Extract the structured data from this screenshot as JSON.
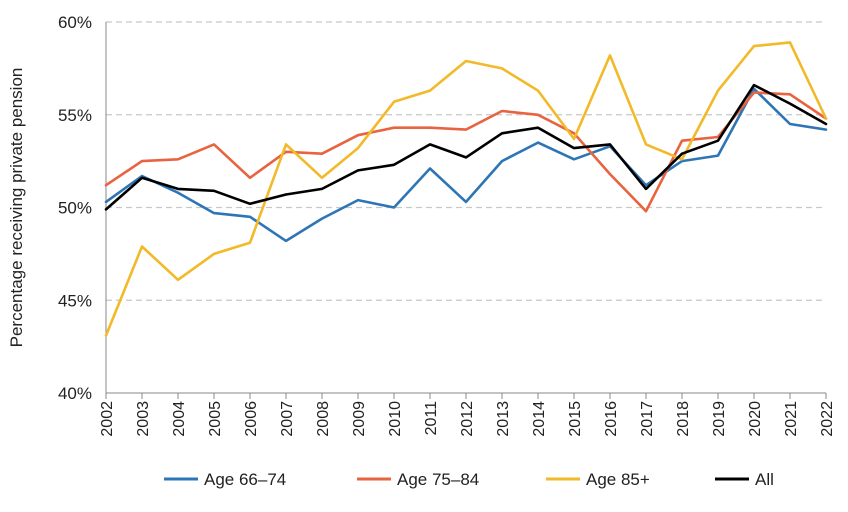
{
  "chart_data": {
    "type": "line",
    "title": "",
    "xlabel": "",
    "ylabel": "Percentage receiving private pension",
    "x": [
      "2002",
      "2003",
      "2004",
      "2005",
      "2006",
      "2007",
      "2008",
      "2009",
      "2010",
      "2011",
      "2012",
      "2013",
      "2014",
      "2015",
      "2016",
      "2017",
      "2018",
      "2019",
      "2020",
      "2021",
      "2022"
    ],
    "yticks": [
      "40%",
      "45%",
      "50%",
      "55%",
      "60%"
    ],
    "ylim": [
      40,
      60
    ],
    "grid": "horizontal dashed",
    "legend_position": "bottom",
    "series": [
      {
        "name": "Age 66–74",
        "color": "#2e75b6",
        "values": [
          50.3,
          51.7,
          50.8,
          49.7,
          49.5,
          48.2,
          49.4,
          50.4,
          50.0,
          52.1,
          50.3,
          52.5,
          53.5,
          52.6,
          53.3,
          51.2,
          52.5,
          52.8,
          56.4,
          54.5,
          54.2
        ]
      },
      {
        "name": "Age 75–84",
        "color": "#e8633f",
        "values": [
          51.2,
          52.5,
          52.6,
          53.4,
          51.6,
          53.0,
          52.9,
          53.9,
          54.3,
          54.3,
          54.2,
          55.2,
          55.0,
          54.0,
          51.8,
          49.8,
          53.6,
          53.8,
          56.2,
          56.1,
          54.8
        ]
      },
      {
        "name": "Age 85+",
        "color": "#f2b928",
        "values": [
          43.1,
          47.9,
          46.1,
          47.5,
          48.1,
          53.4,
          51.6,
          53.2,
          55.7,
          56.3,
          57.9,
          57.5,
          56.3,
          53.7,
          58.2,
          53.4,
          52.6,
          56.3,
          58.7,
          58.9,
          54.8
        ]
      },
      {
        "name": "All",
        "color": "#000000",
        "values": [
          49.9,
          51.6,
          51.0,
          50.9,
          50.2,
          50.7,
          51.0,
          52.0,
          52.3,
          53.4,
          52.7,
          54.0,
          54.3,
          53.2,
          53.4,
          51.0,
          52.9,
          53.6,
          56.6,
          55.6,
          54.5
        ]
      }
    ]
  }
}
